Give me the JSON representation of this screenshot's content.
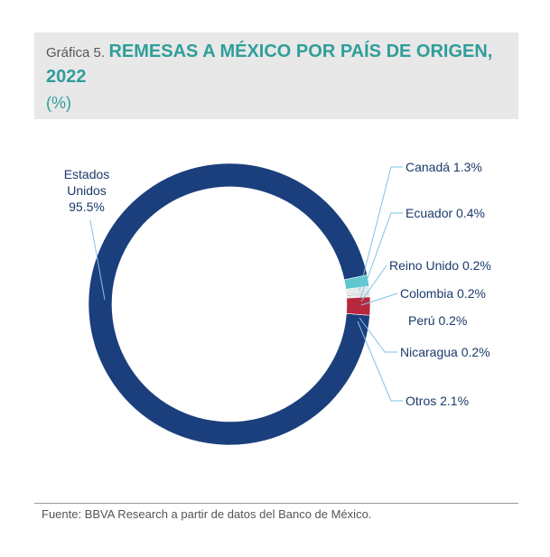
{
  "header": {
    "prefix": "Gráfica 5.",
    "title": "REMESAS A MÉXICO POR PAÍS DE ORIGEN, 2022",
    "subtitle": "(%)"
  },
  "chart_data": {
    "type": "pie",
    "variant": "donut",
    "title": "REMESAS A MÉXICO POR PAÍS DE ORIGEN, 2022",
    "unit": "%",
    "slices": [
      {
        "name": "Estados Unidos",
        "value": 95.5,
        "label": "95.5%",
        "color": "#1b3f7c"
      },
      {
        "name": "Canadá",
        "value": 1.3,
        "label": "1.3%",
        "color": "#5fc7cf"
      },
      {
        "name": "Ecuador",
        "value": 0.4,
        "label": "0.4%",
        "color": "#e7e7e7"
      },
      {
        "name": "Reino Unido",
        "value": 0.2,
        "label": "0.2%",
        "color": "#cfd6e0"
      },
      {
        "name": "Colombia",
        "value": 0.2,
        "label": "0.2%",
        "color": "#d9d9d9"
      },
      {
        "name": "Perú",
        "value": 0.2,
        "label": "0.2%",
        "color": "#bfc5cf"
      },
      {
        "name": "Nicaragua",
        "value": 0.2,
        "label": "0.2%",
        "color": "#e4e4e4"
      },
      {
        "name": "Otros",
        "value": 2.1,
        "label": "2.1%",
        "color": "#b8283c"
      }
    ],
    "legend": "none"
  },
  "footer": {
    "source": "Fuente: BBVA Research a partir de datos del Banco de México."
  }
}
